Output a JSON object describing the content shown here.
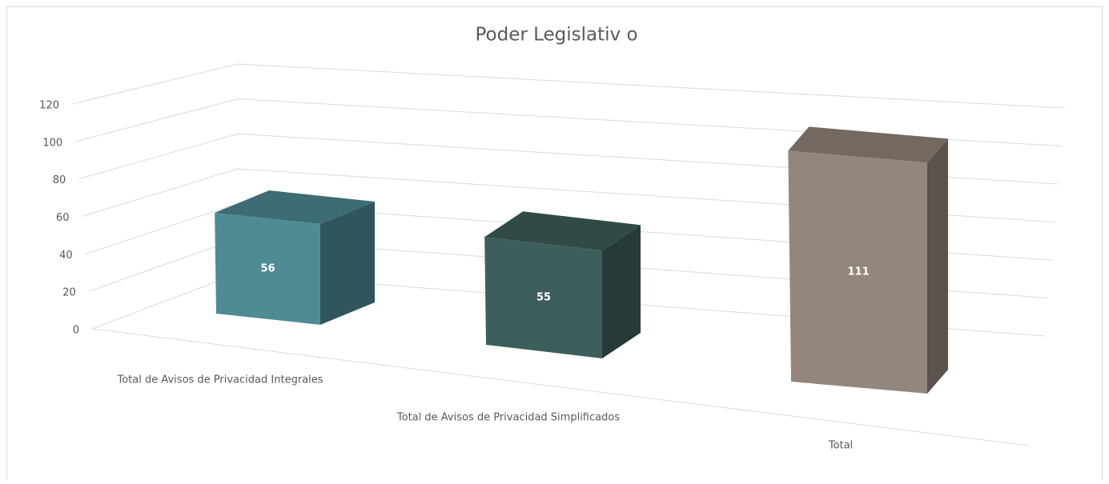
{
  "chart_data": {
    "type": "bar3d",
    "title": "Poder Legislativ o",
    "categories": [
      "Total de Avisos de Privacidad Integrales",
      "Total de Avisos de Privacidad Simplificados",
      "Total"
    ],
    "values": [
      56,
      55,
      111
    ],
    "colors": [
      "#4e8b95",
      "#3d5f5c",
      "#94867c"
    ],
    "ylim": [
      0,
      120
    ],
    "yticks": [
      0,
      20,
      40,
      60,
      80,
      100,
      120
    ],
    "grid": true
  }
}
